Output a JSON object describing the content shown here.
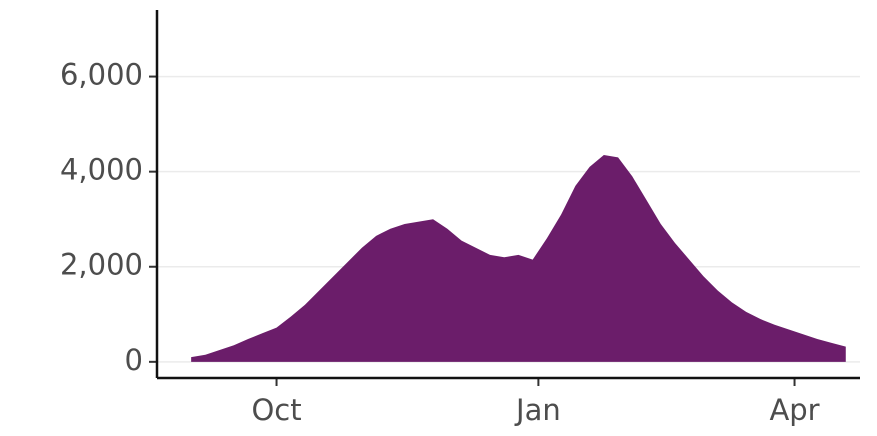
{
  "chart_data": {
    "type": "area",
    "x": [
      -30,
      -25,
      -20,
      -15,
      -10,
      -5,
      0,
      5,
      10,
      15,
      20,
      25,
      30,
      35,
      40,
      45,
      50,
      55,
      60,
      65,
      70,
      75,
      80,
      85,
      90,
      95,
      100,
      105,
      110,
      115,
      120,
      125,
      130,
      135,
      140,
      145,
      150,
      155,
      160,
      165,
      170,
      175,
      180,
      185,
      190,
      195,
      200
    ],
    "values": [
      100,
      150,
      250,
      350,
      480,
      600,
      720,
      950,
      1200,
      1500,
      1800,
      2100,
      2400,
      2650,
      2800,
      2900,
      2950,
      3000,
      2800,
      2550,
      2400,
      2250,
      2200,
      2250,
      2150,
      2600,
      3100,
      3700,
      4100,
      4350,
      4300,
      3900,
      3400,
      2900,
      2500,
      2150,
      1800,
      1500,
      1250,
      1050,
      900,
      780,
      680,
      580,
      480,
      400,
      320
    ],
    "color": "#6b1d6a",
    "xlim": [
      -42,
      205
    ],
    "xticks": [
      {
        "value": 0,
        "label": "Oct"
      },
      {
        "value": 92,
        "label": "Jan"
      },
      {
        "value": 182,
        "label": "Apr"
      }
    ],
    "ylim": [
      -340,
      7400
    ],
    "yticks": [
      0,
      {
        "value": 2000,
        "label": "2,000"
      },
      {
        "value": 4000,
        "label": "4,000"
      },
      {
        "value": 6000,
        "label": "6,000"
      }
    ],
    "grid": true
  }
}
